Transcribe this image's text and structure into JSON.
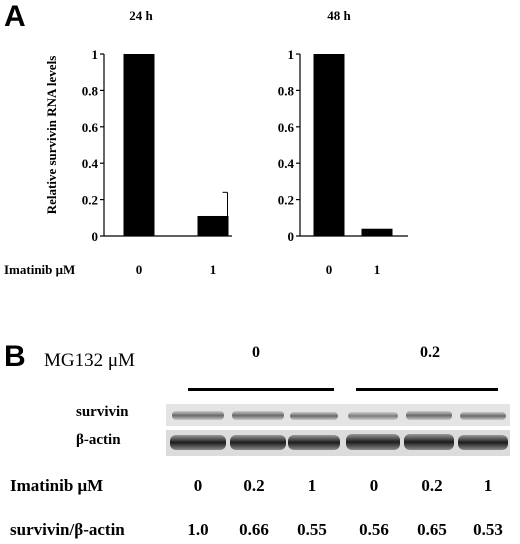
{
  "panel_a": {
    "letter": "A",
    "treatment_label": "Imatinib μM"
  },
  "panel_b": {
    "letter": "B",
    "mg132_label": "MG132  μM",
    "mg132_groups": [
      "0",
      "0.2"
    ],
    "row_labels": [
      "survivin",
      "β-actin"
    ],
    "imatinib_label": "Imatinib μM",
    "imatinib_doses": [
      "0",
      "0.2",
      "1",
      "0",
      "0.2",
      "1"
    ],
    "ratio_label": "survivin/β-actin",
    "ratios": [
      "1.0",
      "0.66",
      "0.55",
      "0.56",
      "0.65",
      "0.53"
    ]
  },
  "chart_data": [
    {
      "type": "bar",
      "title": "24 h",
      "ylabel": "Relative survivin RNA levels",
      "xlabel": "Imatinib μM",
      "categories": [
        "0",
        "1"
      ],
      "values": [
        1.0,
        0.11
      ],
      "error_bars": [
        0,
        0.13
      ],
      "ylim": [
        0,
        1
      ],
      "yticks": [
        "0",
        "0.2",
        "0.4",
        "0.6",
        "0.8",
        "1"
      ],
      "bar_color": "#000000"
    },
    {
      "type": "bar",
      "title": "48 h",
      "ylabel": "",
      "xlabel": "Imatinib μM",
      "categories": [
        "0",
        "1"
      ],
      "values": [
        1.0,
        0.04
      ],
      "error_bars": [
        0,
        0
      ],
      "ylim": [
        0,
        1
      ],
      "yticks": [
        "0",
        "0.2",
        "0.4",
        "0.6",
        "0.8",
        "1"
      ],
      "bar_color": "#000000"
    }
  ]
}
